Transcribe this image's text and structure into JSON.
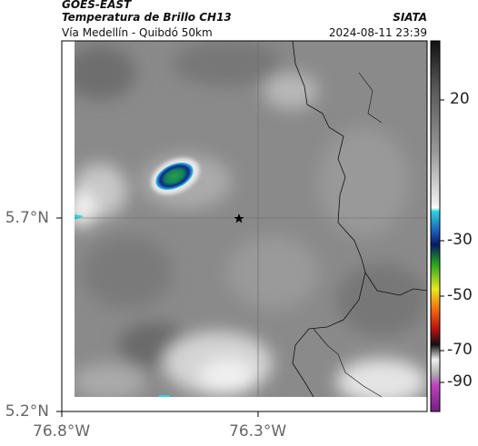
{
  "header": {
    "satellite": "GOES-EAST",
    "product": "Temperatura de Brillo CH13",
    "source": "SIATA",
    "region": "Vía Medellín - Quibdó 50km",
    "datetime": "2024-08-11 23:39"
  },
  "map": {
    "lat_labels": [
      "5.7°N",
      "5.2°N"
    ],
    "lon_labels": [
      "76.8°W",
      "76.3°W"
    ]
  },
  "colorbar": {
    "labels": [
      "20",
      "-30",
      "-50",
      "-70",
      "-90"
    ]
  }
}
